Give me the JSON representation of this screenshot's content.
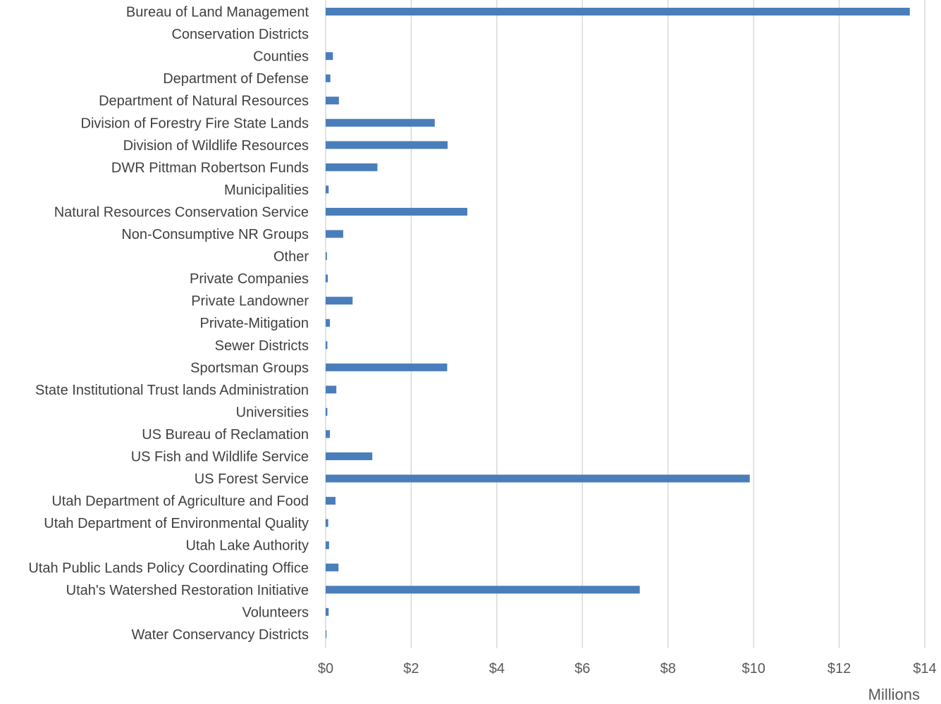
{
  "chart_data": {
    "type": "bar",
    "orientation": "horizontal",
    "categories": [
      "Bureau of Land Management",
      "Conservation Districts",
      "Counties",
      "Department of Defense",
      "Department of Natural Resources",
      "Division of Forestry Fire State Lands",
      "Division of Wildlife Resources",
      "DWR Pittman Robertson Funds",
      "Municipalities",
      "Natural Resources Conservation Service",
      "Non-Consumptive NR Groups",
      "Other",
      "Private Companies",
      "Private Landowner",
      "Private-Mitigation",
      "Sewer Districts",
      "Sportsman Groups",
      "State Institutional Trust lands Administration",
      "Universities",
      "US Bureau of Reclamation",
      "US Fish and Wildlife Service",
      "US Forest Service",
      "Utah Department of Agriculture and Food",
      "Utah Department of Environmental Quality",
      "Utah Lake Authority",
      "Utah Public Lands Policy Coordinating Office",
      "Utah's Watershed Restoration Initiative",
      "Volunteers",
      "Water Conservancy Districts"
    ],
    "values": [
      13.65,
      0.0,
      0.17,
      0.11,
      0.31,
      2.55,
      2.85,
      1.21,
      0.07,
      3.31,
      0.41,
      0.03,
      0.05,
      0.63,
      0.1,
      0.04,
      2.84,
      0.25,
      0.04,
      0.1,
      1.09,
      9.91,
      0.23,
      0.06,
      0.08,
      0.3,
      7.34,
      0.07,
      0.02
    ],
    "xlim": [
      0,
      14
    ],
    "x_ticks": [
      0,
      2,
      4,
      6,
      8,
      10,
      12,
      14
    ],
    "x_tick_labels": [
      "$0",
      "$2",
      "$4",
      "$6",
      "$8",
      "$10",
      "$12",
      "$14"
    ],
    "x_unit_label": "Millions",
    "grid": "vertical",
    "bar_color": "#4a7ebb",
    "title": "",
    "xlabel": "",
    "ylabel": ""
  }
}
